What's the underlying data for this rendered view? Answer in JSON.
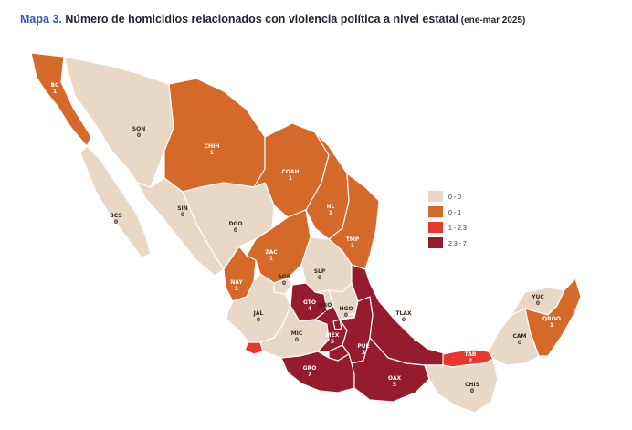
{
  "title": {
    "lead": "Mapa 3.",
    "main": " Número de homicidios relacionados con violencia política a nivel estatal",
    "period": " (ene-mar 2025)"
  },
  "colors": {
    "bin_0": "#ead8c6",
    "bin_1": "#d4692a",
    "bin_2": "#e8372f",
    "bin_3": "#961b2c",
    "dark_text": "#3b2a1e",
    "light_text": "#ffffff",
    "title_accent": "#2a56c6"
  },
  "legend": [
    {
      "label": "0 - 0",
      "bin": "bin_0"
    },
    {
      "label": "0 - 1",
      "bin": "bin_1"
    },
    {
      "label": "1 - 2.3",
      "bin": "bin_2"
    },
    {
      "label": "2.3 - 7",
      "bin": "bin_3"
    }
  ],
  "states": [
    {
      "code": "BC",
      "value": "1",
      "bin": "bin_1"
    },
    {
      "code": "SON",
      "value": "0",
      "bin": "bin_0"
    },
    {
      "code": "BCS",
      "value": "0",
      "bin": "bin_0"
    },
    {
      "code": "CHIH",
      "value": "1",
      "bin": "bin_1"
    },
    {
      "code": "COAH",
      "value": "1",
      "bin": "bin_1"
    },
    {
      "code": "NL",
      "value": "1",
      "bin": "bin_1"
    },
    {
      "code": "TMP",
      "value": "1",
      "bin": "bin_1"
    },
    {
      "code": "SIN",
      "value": "0",
      "bin": "bin_0"
    },
    {
      "code": "DGO",
      "value": "0",
      "bin": "bin_0"
    },
    {
      "code": "ZAC",
      "value": "1",
      "bin": "bin_1"
    },
    {
      "code": "NAY",
      "value": "1",
      "bin": "bin_1"
    },
    {
      "code": "AGS",
      "value": "0",
      "bin": "bin_0"
    },
    {
      "code": "SLP",
      "value": "0",
      "bin": "bin_0"
    },
    {
      "code": "JAL",
      "value": "0",
      "bin": "bin_0"
    },
    {
      "code": "GTO",
      "value": "4",
      "bin": "bin_3"
    },
    {
      "code": "QRO",
      "value": "0",
      "bin": "bin_0"
    },
    {
      "code": "HGO",
      "value": "0",
      "bin": "bin_0"
    },
    {
      "code": "MOR",
      "value": "7",
      "bin": "bin_3"
    },
    {
      "code": "CDMX",
      "value": "3",
      "bin": "bin_3"
    },
    {
      "code": "TLAX",
      "value": "0",
      "bin": "bin_0"
    },
    {
      "code": "VER",
      "value": "4",
      "bin": "bin_3"
    },
    {
      "code": "MEX",
      "value": "5",
      "bin": "bin_3"
    },
    {
      "code": "PUE",
      "value": "3",
      "bin": "bin_3"
    },
    {
      "code": "MIC",
      "value": "0",
      "bin": "bin_0"
    },
    {
      "code": "COL",
      "value": "2",
      "bin": "bin_2"
    },
    {
      "code": "GRO",
      "value": "7",
      "bin": "bin_3"
    },
    {
      "code": "OAX",
      "value": "5",
      "bin": "bin_3"
    },
    {
      "code": "TAB",
      "value": "2",
      "bin": "bin_2"
    },
    {
      "code": "CHIS",
      "value": "0",
      "bin": "bin_0"
    },
    {
      "code": "CAM",
      "value": "0",
      "bin": "bin_0"
    },
    {
      "code": "YUC",
      "value": "0",
      "bin": "bin_0"
    },
    {
      "code": "QROO",
      "value": "1",
      "bin": "bin_1"
    }
  ]
}
